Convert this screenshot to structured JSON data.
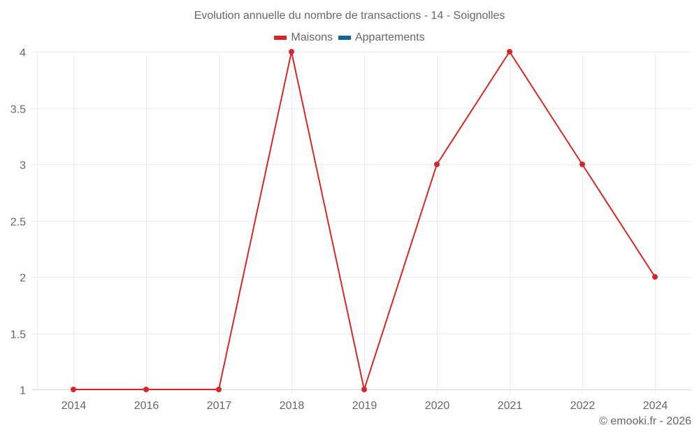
{
  "chart_data": {
    "type": "line",
    "title": "Evolution annuelle du nombre de transactions - 14 - Soignolles",
    "categories": [
      "2014",
      "2016",
      "2017",
      "2018",
      "2019",
      "2020",
      "2021",
      "2022",
      "2024"
    ],
    "series": [
      {
        "name": "Maisons",
        "color": "#d62728",
        "values": [
          1,
          1,
          1,
          4,
          1,
          3,
          4,
          3,
          2
        ]
      },
      {
        "name": "Appartements",
        "color": "#1565a0",
        "values": []
      }
    ],
    "xlabel": "",
    "ylabel": "",
    "ylim": [
      1,
      4
    ],
    "yticks": [
      "1",
      "1.5",
      "2",
      "2.5",
      "3",
      "3.5",
      "4"
    ],
    "grid": true,
    "legend_position": "top-center"
  },
  "header": {
    "title": "Evolution annuelle du nombre de transactions - 14 - Soignolles"
  },
  "legend": {
    "items": [
      {
        "label": "Maisons",
        "color": "#d62728"
      },
      {
        "label": "Appartements",
        "color": "#1565a0"
      }
    ]
  },
  "footer": {
    "credit": "© emooki.fr - 2026"
  }
}
